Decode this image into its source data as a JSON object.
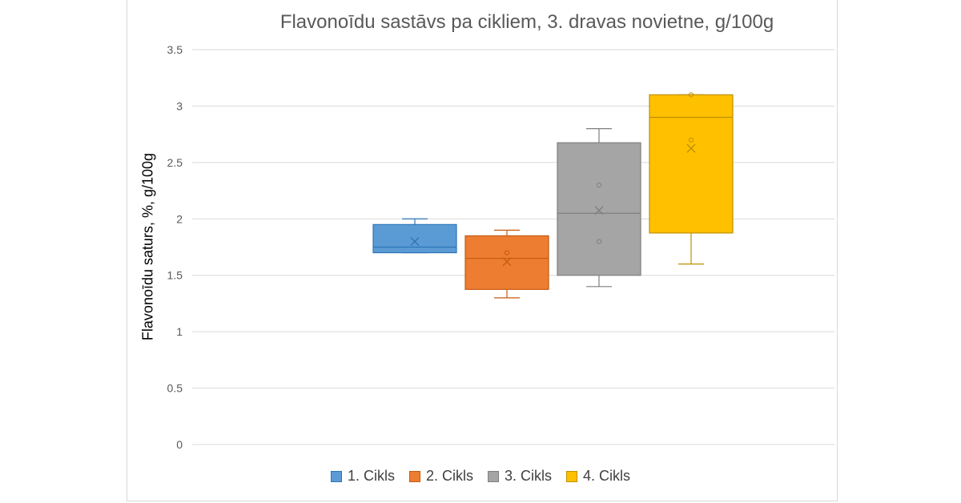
{
  "chart_data": {
    "type": "boxplot",
    "title": "Flavonoīdu sastāvs pa cikliem, 3. dravas novietne, g/100g",
    "ylabel": "Flavonoīdu saturs, %, g/100g",
    "xlabel": "",
    "ylim": [
      0,
      3.5
    ],
    "yticks": [
      0,
      0.5,
      1,
      1.5,
      2,
      2.5,
      3,
      3.5
    ],
    "ytick_labels": [
      "0",
      "0.5",
      "1",
      "1.5",
      "2",
      "2.5",
      "3",
      "3.5"
    ],
    "grid": true,
    "legend_position": "bottom",
    "series": [
      {
        "name": "1. Cikls",
        "color": "#5B9BD5",
        "edge": "#2E75B6",
        "min": 1.7,
        "q1": 1.7,
        "median": 1.75,
        "q3": 1.95,
        "max": 2.0,
        "mean": 1.8,
        "points": []
      },
      {
        "name": "2. Cikls",
        "color": "#ED7D31",
        "edge": "#C55A11",
        "min": 1.3,
        "q1": 1.375,
        "median": 1.65,
        "q3": 1.85,
        "max": 1.9,
        "mean": 1.62,
        "points": [
          1.7
        ]
      },
      {
        "name": "3. Cikls",
        "color": "#A5A5A5",
        "edge": "#7F7F7F",
        "min": 1.4,
        "q1": 1.5,
        "median": 2.05,
        "q3": 2.675,
        "max": 2.8,
        "mean": 2.075,
        "points": [
          1.8,
          2.3
        ]
      },
      {
        "name": "4. Cikls",
        "color": "#FFC000",
        "edge": "#BF9000",
        "min": 1.6,
        "q1": 1.875,
        "median": 2.9,
        "q3": 3.1,
        "max": 3.1,
        "mean": 2.625,
        "points": [
          2.7,
          3.1
        ]
      }
    ]
  }
}
